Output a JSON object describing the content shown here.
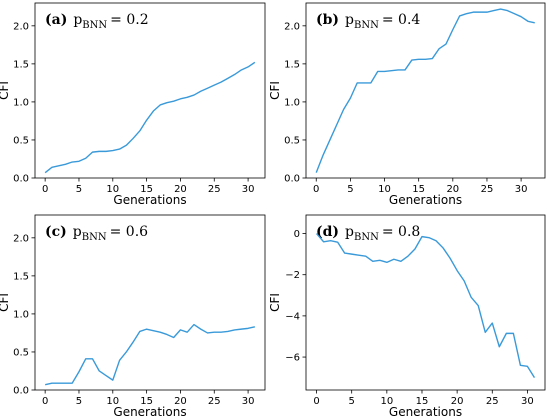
{
  "figure": {
    "line_color": "#3a9ad9"
  },
  "chart_data": [
    {
      "type": "line",
      "panel_letter": "(a)",
      "title_var": "p",
      "title_sub": "BNN",
      "title_value": "= 0.2",
      "xlabel": "Generations",
      "ylabel": "CFI",
      "xlim": [
        -1.5,
        32.5
      ],
      "ylim": [
        0,
        2.3
      ],
      "xticks": [
        0,
        5,
        10,
        15,
        20,
        25,
        30
      ],
      "yticks": [
        0.0,
        0.5,
        1.0,
        1.5,
        2.0
      ],
      "ytick_labels": [
        "0.0",
        "0.5",
        "1.0",
        "1.5",
        "2.0"
      ],
      "x": [
        0,
        1,
        2,
        3,
        4,
        5,
        6,
        7,
        8,
        9,
        10,
        11,
        12,
        13,
        14,
        15,
        16,
        17,
        18,
        19,
        20,
        21,
        22,
        23,
        24,
        25,
        26,
        27,
        28,
        29,
        30,
        31
      ],
      "y": [
        0.07,
        0.14,
        0.16,
        0.18,
        0.21,
        0.22,
        0.26,
        0.34,
        0.35,
        0.35,
        0.36,
        0.38,
        0.43,
        0.52,
        0.62,
        0.76,
        0.88,
        0.96,
        0.99,
        1.01,
        1.04,
        1.06,
        1.09,
        1.14,
        1.18,
        1.22,
        1.26,
        1.31,
        1.36,
        1.42,
        1.46,
        1.52
      ]
    },
    {
      "type": "line",
      "panel_letter": "(b)",
      "title_var": "p",
      "title_sub": "BNN",
      "title_value": "= 0.4",
      "xlabel": "Generations",
      "ylabel": "CFI",
      "xlim": [
        -1.5,
        33.5
      ],
      "ylim": [
        0,
        2.3
      ],
      "xticks": [
        0,
        5,
        10,
        15,
        20,
        25,
        30
      ],
      "yticks": [
        0.0,
        0.5,
        1.0,
        1.5,
        2.0
      ],
      "ytick_labels": [
        "0.0",
        "0.5",
        "1.0",
        "1.5",
        "2.0"
      ],
      "x": [
        0,
        1,
        2,
        3,
        4,
        5,
        6,
        7,
        8,
        9,
        10,
        11,
        12,
        13,
        14,
        15,
        16,
        17,
        18,
        19,
        20,
        21,
        22,
        23,
        24,
        25,
        26,
        27,
        28,
        29,
        30,
        31,
        32
      ],
      "y": [
        0.07,
        0.3,
        0.5,
        0.7,
        0.9,
        1.05,
        1.25,
        1.25,
        1.25,
        1.4,
        1.4,
        1.41,
        1.42,
        1.42,
        1.55,
        1.56,
        1.56,
        1.57,
        1.7,
        1.76,
        1.95,
        2.13,
        2.16,
        2.18,
        2.18,
        2.18,
        2.2,
        2.22,
        2.2,
        2.16,
        2.12,
        2.06,
        2.04
      ]
    },
    {
      "type": "line",
      "panel_letter": "(c)",
      "title_var": "p",
      "title_sub": "BNN",
      "title_value": "= 0.6",
      "xlabel": "Generations",
      "ylabel": "CFI",
      "xlim": [
        -1.5,
        32.5
      ],
      "ylim": [
        0,
        2.3
      ],
      "xticks": [
        0,
        5,
        10,
        15,
        20,
        25,
        30
      ],
      "yticks": [
        0.0,
        0.5,
        1.0,
        1.5,
        2.0
      ],
      "ytick_labels": [
        "0.0",
        "0.5",
        "1.0",
        "1.5",
        "2.0"
      ],
      "x": [
        0,
        1,
        2,
        3,
        4,
        5,
        6,
        7,
        8,
        9,
        10,
        11,
        12,
        13,
        14,
        15,
        16,
        17,
        18,
        19,
        20,
        21,
        22,
        23,
        24,
        25,
        26,
        27,
        28,
        29,
        30,
        31
      ],
      "y": [
        0.07,
        0.09,
        0.09,
        0.09,
        0.09,
        0.24,
        0.41,
        0.41,
        0.25,
        0.19,
        0.13,
        0.39,
        0.5,
        0.63,
        0.77,
        0.8,
        0.78,
        0.76,
        0.73,
        0.69,
        0.79,
        0.76,
        0.86,
        0.8,
        0.75,
        0.76,
        0.76,
        0.77,
        0.79,
        0.8,
        0.81,
        0.83
      ]
    },
    {
      "type": "line",
      "panel_letter": "(d)",
      "title_var": "p",
      "title_sub": "BNN",
      "title_value": "= 0.8",
      "xlabel": "Generations",
      "ylabel": "CFI",
      "xlim": [
        -1.5,
        32.5
      ],
      "ylim": [
        -7.6,
        0.9
      ],
      "xticks": [
        0,
        5,
        10,
        15,
        20,
        25,
        30
      ],
      "yticks": [
        0,
        -2,
        -4,
        -6
      ],
      "ytick_labels": [
        "0",
        "−2",
        "−4",
        "−6"
      ],
      "x": [
        0,
        1,
        2,
        3,
        4,
        5,
        6,
        7,
        8,
        9,
        10,
        11,
        12,
        13,
        14,
        15,
        16,
        17,
        18,
        19,
        20,
        21,
        22,
        23,
        24,
        25,
        26,
        27,
        28,
        29,
        30,
        31
      ],
      "y": [
        0.0,
        -0.4,
        -0.35,
        -0.42,
        -0.95,
        -1.0,
        -1.05,
        -1.1,
        -1.35,
        -1.3,
        -1.4,
        -1.25,
        -1.35,
        -1.1,
        -0.75,
        -0.15,
        -0.2,
        -0.35,
        -0.7,
        -1.2,
        -1.8,
        -2.3,
        -3.1,
        -3.5,
        -4.8,
        -4.35,
        -5.5,
        -4.85,
        -4.85,
        -6.4,
        -6.45,
        -7.0
      ]
    }
  ]
}
